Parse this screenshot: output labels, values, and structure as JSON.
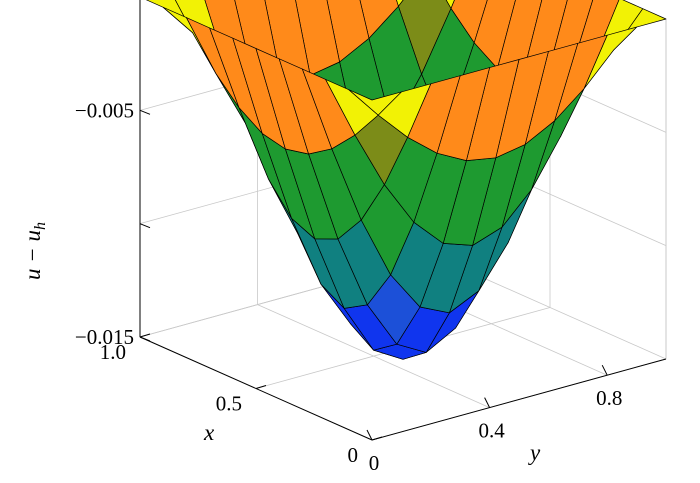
{
  "chart_data": {
    "type": "surface",
    "title": "",
    "xlabel": "x",
    "ylabel": "y",
    "zlabel_main": "u − u",
    "zlabel_sub": "h",
    "x_range": [
      0,
      1
    ],
    "y_range": [
      0,
      1
    ],
    "z_range": [
      -0.015,
      0
    ],
    "x_ticks": [
      {
        "value": 0,
        "label": "0"
      },
      {
        "value": 0.5,
        "label": "0.5"
      },
      {
        "value": 1.0,
        "label": "1.0"
      }
    ],
    "y_ticks": [
      {
        "value": 0,
        "label": "0"
      },
      {
        "value": 0.4,
        "label": "0.4"
      },
      {
        "value": 0.8,
        "label": "0.8"
      }
    ],
    "z_ticks": [
      {
        "value": -0.015,
        "label": "−0.015"
      },
      {
        "value": -0.01,
        "label": ""
      },
      {
        "value": -0.005,
        "label": "−0.005"
      }
    ],
    "grid": true,
    "mesh_n": 10,
    "surface_min": -0.0155,
    "colors": {
      "yellow": "#f2f205",
      "orange": "#ff8a1a",
      "olive": "#7c8c18",
      "green": "#1e9a30",
      "teal": "#108080",
      "blue": "#1c50d8",
      "deep_blue": "#1035ee"
    }
  }
}
